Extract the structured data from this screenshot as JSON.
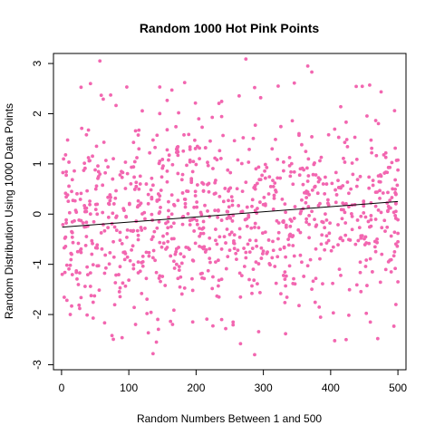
{
  "chart_data": {
    "type": "scatter",
    "title": "Random 1000 Hot Pink Points",
    "xlabel": "Random Numbers Between 1 and 500",
    "ylabel": "Random Distribution Using 1000 Data Points",
    "xlim": [
      -12,
      512
    ],
    "ylim": [
      -3.1,
      3.2
    ],
    "x_ticks": [
      0,
      100,
      200,
      300,
      400,
      500
    ],
    "y_ticks": [
      -3,
      -2,
      -1,
      0,
      1,
      2,
      3
    ],
    "grid": false,
    "legend": "none",
    "point_color": "#f266b0",
    "trend_color": "#000000",
    "point_count": 1000,
    "trend_line": {
      "x": [
        1,
        500
      ],
      "y": [
        -0.26,
        0.25
      ]
    },
    "sample_points": [
      {
        "x": 57,
        "y": 3.05
      },
      {
        "x": 274,
        "y": 3.09
      },
      {
        "x": 287,
        "y": 2.52
      },
      {
        "x": 366,
        "y": 2.95
      },
      {
        "x": 372,
        "y": 2.83
      },
      {
        "x": 346,
        "y": 2.61
      },
      {
        "x": 322,
        "y": 2.55
      },
      {
        "x": 43,
        "y": 2.6
      },
      {
        "x": 183,
        "y": 2.62
      },
      {
        "x": 458,
        "y": 2.57
      },
      {
        "x": 415,
        "y": 2.14
      },
      {
        "x": 495,
        "y": 2.06
      },
      {
        "x": 136,
        "y": -2.78
      },
      {
        "x": 287,
        "y": -2.8
      },
      {
        "x": 141,
        "y": -2.55
      },
      {
        "x": 423,
        "y": -2.5
      },
      {
        "x": 459,
        "y": -2.15
      },
      {
        "x": 13,
        "y": -2.0
      },
      {
        "x": 238,
        "y": -2.1
      },
      {
        "x": 497,
        "y": -1.8
      }
    ]
  }
}
